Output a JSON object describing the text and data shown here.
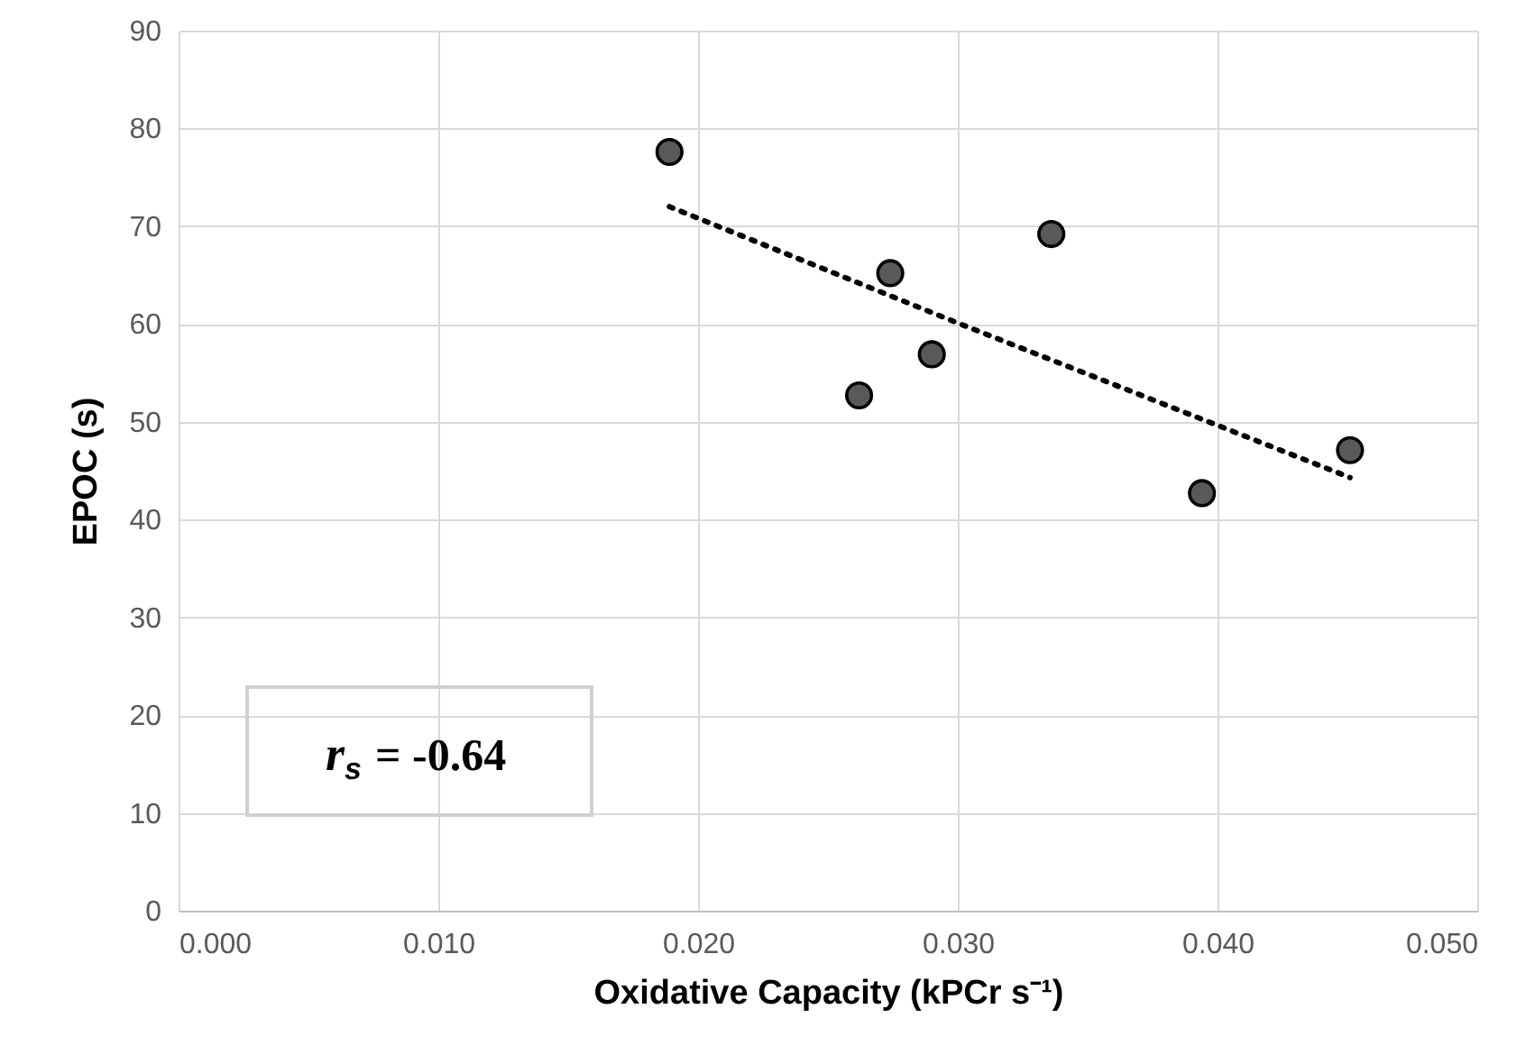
{
  "chart_data": {
    "type": "scatter",
    "xlabel": "Oxidative Capacity (kPCr s⁻¹)",
    "ylabel": "EPOC (s)",
    "xlim": [
      0,
      0.05
    ],
    "xticks": [
      {
        "value": 0,
        "label": "0.000"
      },
      {
        "value": 0.01,
        "label": "0.010"
      },
      {
        "value": 0.02,
        "label": "0.020"
      },
      {
        "value": 0.03,
        "label": "0.030"
      },
      {
        "value": 0.04,
        "label": "0.040"
      },
      {
        "value": 0.05,
        "label": "0.050"
      }
    ],
    "ylim": [
      0,
      90
    ],
    "yticks": [
      0,
      10,
      20,
      30,
      40,
      50,
      60,
      70,
      80,
      90
    ],
    "grid": true,
    "series": [
      {
        "color": "#595959",
        "marker": "circle",
        "x": [
          0.0189,
          0.0274,
          0.0336,
          0.029,
          0.0262,
          0.0394,
          0.0451
        ],
        "values": [
          77.6,
          65.2,
          69.2,
          56.9,
          52.7,
          42.7,
          47.1
        ]
      },
      {
        "type": "line",
        "color": "#000000",
        "line_style": "dotted",
        "marker": "none",
        "x": [
          0.0189,
          0.03,
          0.0451
        ],
        "values": [
          72.0,
          60.1,
          44.3
        ]
      }
    ],
    "annotations": [
      "r$_{s}$ = -0.64"
    ]
  }
}
